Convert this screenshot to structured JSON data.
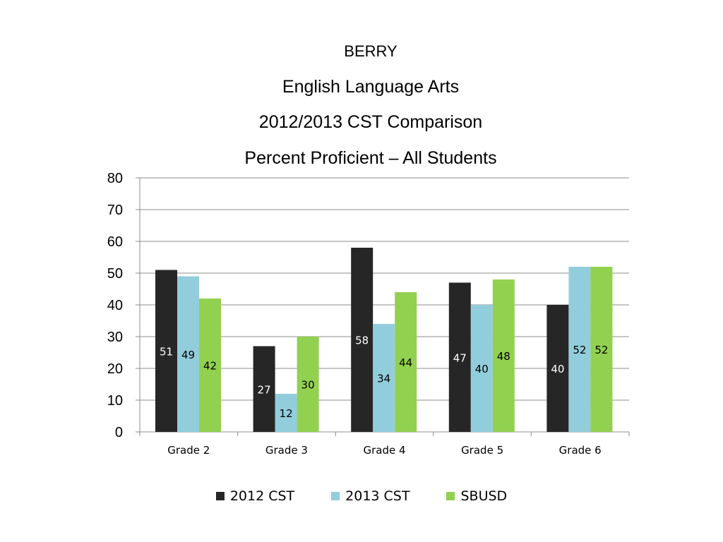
{
  "chart_data": {
    "type": "bar",
    "title": "BERRY",
    "subtitle_lines": [
      "English Language Arts",
      "2012/2013 CST Comparison",
      "Percent Proficient – All Students"
    ],
    "categories": [
      "Grade 2",
      "Grade 3",
      "Grade 4",
      "Grade 5",
      "Grade 6"
    ],
    "series": [
      {
        "name": "2012 CST",
        "color": "#262626",
        "label_color": "#ffffff",
        "values": [
          51,
          27,
          58,
          47,
          40
        ]
      },
      {
        "name": "2013 CST",
        "color": "#92cddc",
        "label_color": "#000000",
        "values": [
          49,
          12,
          34,
          40,
          52
        ]
      },
      {
        "name": "SBUSD",
        "color": "#92d050",
        "label_color": "#000000",
        "values": [
          42,
          30,
          44,
          48,
          52
        ]
      }
    ],
    "ylim": [
      0,
      80
    ],
    "yticks": [
      0,
      10,
      20,
      30,
      40,
      50,
      60,
      70,
      80
    ],
    "grid": true,
    "legend_position": "bottom",
    "xlabel": "",
    "ylabel": ""
  }
}
